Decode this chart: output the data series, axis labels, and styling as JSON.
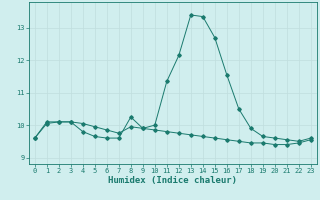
{
  "xlabel": "Humidex (Indice chaleur)",
  "x": [
    0,
    1,
    2,
    3,
    4,
    5,
    6,
    7,
    8,
    9,
    10,
    11,
    12,
    13,
    14,
    15,
    16,
    17,
    18,
    19,
    20,
    21,
    22,
    23
  ],
  "line1": [
    9.6,
    10.1,
    10.1,
    10.1,
    9.8,
    9.65,
    9.6,
    9.6,
    10.25,
    9.9,
    10.0,
    11.35,
    12.15,
    13.4,
    13.35,
    12.7,
    11.55,
    10.5,
    9.9,
    9.65,
    9.6,
    9.55,
    9.5,
    9.6
  ],
  "line2": [
    9.6,
    10.05,
    10.1,
    10.1,
    10.05,
    9.95,
    9.85,
    9.75,
    9.95,
    9.9,
    9.85,
    9.8,
    9.75,
    9.7,
    9.65,
    9.6,
    9.55,
    9.5,
    9.45,
    9.45,
    9.4,
    9.4,
    9.45,
    9.55
  ],
  "line_color": "#1a7a6e",
  "bg_color": "#d0eeee",
  "grid_color": "#c0dede",
  "ylim": [
    8.8,
    13.8
  ],
  "xlim": [
    -0.5,
    23.5
  ],
  "yticks": [
    9,
    10,
    11,
    12,
    13
  ],
  "xticks": [
    0,
    1,
    2,
    3,
    4,
    5,
    6,
    7,
    8,
    9,
    10,
    11,
    12,
    13,
    14,
    15,
    16,
    17,
    18,
    19,
    20,
    21,
    22,
    23
  ],
  "tick_fontsize": 5.0,
  "label_fontsize": 6.5
}
